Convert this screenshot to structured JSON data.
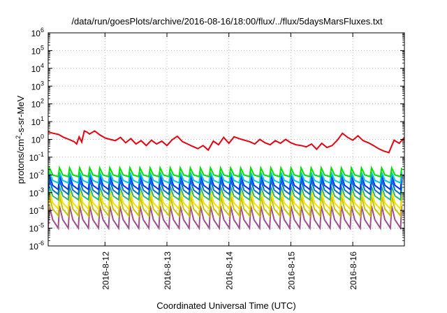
{
  "chart_data": {
    "type": "line",
    "title": "/data/run/goesPlots/archive/2016-08-16/18:00/flux/../flux/5daysMarsFluxes.txt",
    "xlabel": "Coordinated Universal Time (UTC)",
    "ylabel_parts": {
      "base": "protons/cm",
      "exp": "2",
      "rest": "-s-sr-MeV"
    },
    "x_range": [
      "2016-08-11 02:00",
      "2016-08-16 20:00"
    ],
    "y_scale": "log",
    "ylim": [
      1e-06,
      1000000.0
    ],
    "x_ticks": [
      {
        "value": "2016-08-12 00:00",
        "label": "2016-8-12"
      },
      {
        "value": "2016-08-13 00:00",
        "label": "2016-8-13"
      },
      {
        "value": "2016-08-14 00:00",
        "label": "2016-8-14"
      },
      {
        "value": "2016-08-15 00:00",
        "label": "2016-8-15"
      },
      {
        "value": "2016-08-16 00:00",
        "label": "2016-8-16"
      }
    ],
    "y_ticks": [
      {
        "exp": "-6"
      },
      {
        "exp": "-5"
      },
      {
        "exp": "-4"
      },
      {
        "exp": "-3"
      },
      {
        "exp": "-2"
      },
      {
        "exp": "-1"
      },
      {
        "exp": "0"
      },
      {
        "exp": "1"
      },
      {
        "exp": "2"
      },
      {
        "exp": "3"
      },
      {
        "exp": "4"
      },
      {
        "exp": "5"
      },
      {
        "exp": "6"
      }
    ],
    "y_tick_base": "10",
    "grid": true,
    "series": [
      {
        "color": "#e8000f",
        "x": [
          "2016-08-11 02:00",
          "2016-08-11 04:00",
          "2016-08-11 06:00",
          "2016-08-11 08:00",
          "2016-08-11 10:00",
          "2016-08-11 12:00",
          "2016-08-11 13:00",
          "2016-08-11 14:00",
          "2016-08-11 15:00",
          "2016-08-11 16:00",
          "2016-08-11 17:00",
          "2016-08-11 18:00",
          "2016-08-11 20:00",
          "2016-08-11 22:00",
          "2016-08-12 00:00",
          "2016-08-12 02:00",
          "2016-08-12 04:00",
          "2016-08-12 06:00",
          "2016-08-12 08:00",
          "2016-08-12 10:00",
          "2016-08-12 12:00",
          "2016-08-12 14:00",
          "2016-08-12 16:00",
          "2016-08-12 18:00",
          "2016-08-12 20:00",
          "2016-08-12 22:00",
          "2016-08-13 00:00",
          "2016-08-13 02:00",
          "2016-08-13 04:00",
          "2016-08-13 06:00",
          "2016-08-13 08:00",
          "2016-08-13 10:00",
          "2016-08-13 12:00",
          "2016-08-13 14:00",
          "2016-08-13 16:00",
          "2016-08-13 18:00",
          "2016-08-13 20:00",
          "2016-08-13 22:00",
          "2016-08-14 00:00",
          "2016-08-14 02:00",
          "2016-08-14 04:00",
          "2016-08-14 06:00",
          "2016-08-14 08:00",
          "2016-08-14 10:00",
          "2016-08-14 12:00",
          "2016-08-14 14:00",
          "2016-08-14 16:00",
          "2016-08-14 18:00",
          "2016-08-14 20:00",
          "2016-08-14 22:00",
          "2016-08-15 00:00",
          "2016-08-15 02:00",
          "2016-08-15 04:00",
          "2016-08-15 06:00",
          "2016-08-15 08:00",
          "2016-08-15 10:00",
          "2016-08-15 12:00",
          "2016-08-15 14:00",
          "2016-08-15 16:00",
          "2016-08-15 18:00",
          "2016-08-15 20:00",
          "2016-08-15 22:00",
          "2016-08-16 00:00",
          "2016-08-16 02:00",
          "2016-08-16 04:00",
          "2016-08-16 06:00",
          "2016-08-16 08:00",
          "2016-08-16 10:00",
          "2016-08-16 12:00",
          "2016-08-16 14:00",
          "2016-08-16 16:00",
          "2016-08-16 18:00",
          "2016-08-16 20:00"
        ],
        "values": [
          2.6,
          2.2,
          1.9,
          1.3,
          1.0,
          0.75,
          0.55,
          1.4,
          0.7,
          3.0,
          2.6,
          2.0,
          3.0,
          1.8,
          1.2,
          1.0,
          0.85,
          1.3,
          0.65,
          1.1,
          0.55,
          0.85,
          0.45,
          0.9,
          0.55,
          0.8,
          0.45,
          0.95,
          1.5,
          0.75,
          0.55,
          0.4,
          0.3,
          0.45,
          0.25,
          0.8,
          0.5,
          1.3,
          0.6,
          1.4,
          1.1,
          0.9,
          0.75,
          0.55,
          1.0,
          0.65,
          0.5,
          0.85,
          0.6,
          1.0,
          0.65,
          0.5,
          0.45,
          0.38,
          0.55,
          0.28,
          0.6,
          0.35,
          0.45,
          0.9,
          2.2,
          1.3,
          0.9,
          1.6,
          0.85,
          0.65,
          0.45,
          0.3,
          0.22,
          0.18,
          0.9,
          0.6,
          1.3
        ]
      },
      {
        "color": "#00e000",
        "spike": true,
        "low": 0.008,
        "high": 0.025
      },
      {
        "color": "#00c8d8",
        "spike": true,
        "low": 0.0035,
        "high": 0.014
      },
      {
        "color": "#0035ff",
        "spike": true,
        "low": 0.0015,
        "high": 0.009
      },
      {
        "color": "#0072c8",
        "spike": true,
        "low": 0.0008,
        "high": 0.005
      },
      {
        "color": "#2db37a",
        "spike": true,
        "low": 0.0004,
        "high": 0.0022
      },
      {
        "color": "#f0e000",
        "spike": true,
        "low": 0.00012,
        "high": 0.0012
      },
      {
        "color": "#c8c000",
        "spike": true,
        "low": 5e-05,
        "high": 0.0006
      },
      {
        "color": "#a0508c",
        "spike": true,
        "low": 1e-05,
        "high": 0.00018
      }
    ],
    "spike_period_hours": 3.9
  }
}
